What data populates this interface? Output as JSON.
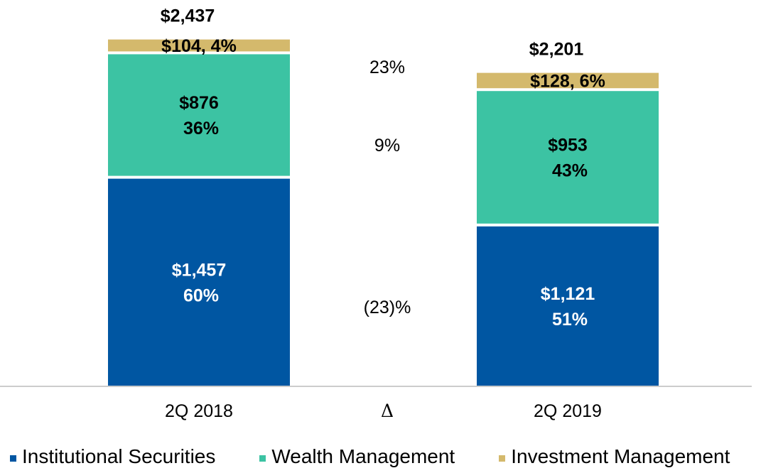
{
  "chart_data": {
    "type": "bar",
    "stacked": true,
    "title": "",
    "xlabel": "",
    "ylabel": "",
    "categories": [
      "2Q 2018",
      "2Q 2019"
    ],
    "delta_label": "Δ",
    "series": [
      {
        "name": "Institutional Securities",
        "color": "#0056A2",
        "text_color": "#FFFFFF",
        "values": [
          1457,
          1121
        ],
        "labels": [
          [
            "$1,457",
            "60%"
          ],
          [
            "$1,121",
            "51%"
          ]
        ],
        "delta": "(23)%"
      },
      {
        "name": "Wealth Management",
        "color": "#3CC3A3",
        "text_color": "#000000",
        "values": [
          876,
          953
        ],
        "labels": [
          [
            "$876",
            "36%"
          ],
          [
            "$953",
            "43%"
          ]
        ],
        "delta": "9%"
      },
      {
        "name": "Investment Management",
        "color": "#D4B96C",
        "text_color": "#000000",
        "values": [
          104,
          128
        ],
        "labels": [
          [
            "$104, 4%"
          ],
          [
            "$128, 6%"
          ]
        ],
        "delta": "23%"
      }
    ],
    "totals": [
      "$2,437",
      "$2,201"
    ],
    "legend_position": "bottom",
    "grid": false
  }
}
